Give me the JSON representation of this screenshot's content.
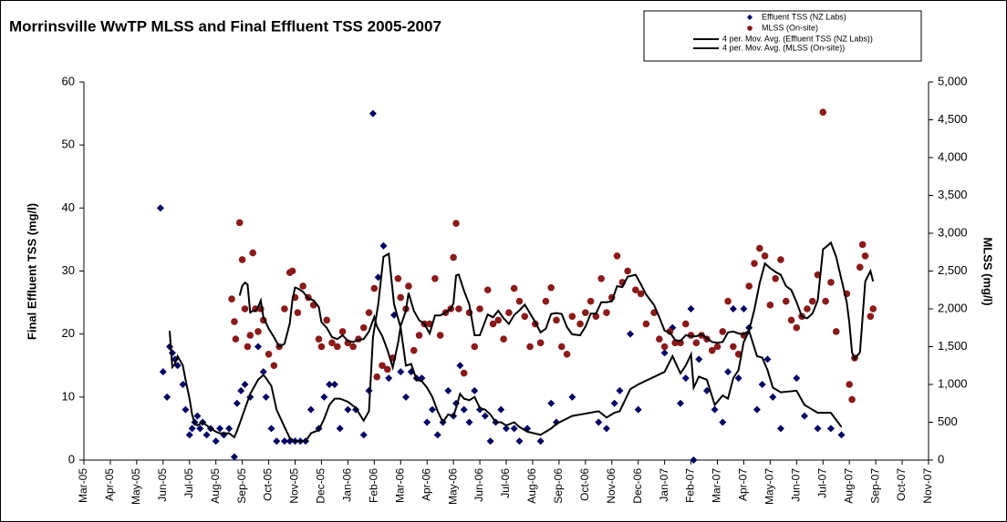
{
  "chart_data": {
    "type": "scatter",
    "title": "Morrinsville WwTP MLSS and Final Effluent TSS 2005-2007",
    "y_label": "Final Effluent TSS (mg/l)",
    "y2_label": "MLSS (mg/l)",
    "xlim": [
      0,
      32
    ],
    "xticks": [
      {
        "value": 0,
        "label": "Mar-05"
      },
      {
        "value": 1,
        "label": "Apr-05"
      },
      {
        "value": 2,
        "label": "May-05"
      },
      {
        "value": 3,
        "label": "Jun-05"
      },
      {
        "value": 4,
        "label": "Jul-05"
      },
      {
        "value": 5,
        "label": "Aug-05"
      },
      {
        "value": 6,
        "label": "Sep-05"
      },
      {
        "value": 7,
        "label": "Oct-05"
      },
      {
        "value": 8,
        "label": "Nov-05"
      },
      {
        "value": 9,
        "label": "Dec-05"
      },
      {
        "value": 10,
        "label": "Jan-06"
      },
      {
        "value": 11,
        "label": "Feb-06"
      },
      {
        "value": 12,
        "label": "Mar-06"
      },
      {
        "value": 13,
        "label": "Apr-06"
      },
      {
        "value": 14,
        "label": "May-06"
      },
      {
        "value": 15,
        "label": "Jun-06"
      },
      {
        "value": 16,
        "label": "Jul-06"
      },
      {
        "value": 17,
        "label": "Aug-06"
      },
      {
        "value": 18,
        "label": "Sep-06"
      },
      {
        "value": 19,
        "label": "Oct-06"
      },
      {
        "value": 20,
        "label": "Nov-06"
      },
      {
        "value": 21,
        "label": "Dec-06"
      },
      {
        "value": 22,
        "label": "Jan-07"
      },
      {
        "value": 23,
        "label": "Feb-07"
      },
      {
        "value": 24,
        "label": "Mar-07"
      },
      {
        "value": 25,
        "label": "Apr-07"
      },
      {
        "value": 26,
        "label": "May-07"
      },
      {
        "value": 27,
        "label": "Jun-07"
      },
      {
        "value": 28,
        "label": "Jul-07"
      },
      {
        "value": 29,
        "label": "Aug-07"
      },
      {
        "value": 30,
        "label": "Sep-07"
      },
      {
        "value": 31,
        "label": "Oct-07"
      },
      {
        "value": 32,
        "label": "Nov-07"
      }
    ],
    "ylim": [
      0,
      60
    ],
    "yticks": [
      0,
      10,
      20,
      30,
      40,
      50,
      60
    ],
    "y2lim": [
      0,
      5000
    ],
    "y2ticks": [
      0,
      500,
      {
        "value": 1000,
        "label": "1,000"
      },
      {
        "value": 1500,
        "label": "1,500"
      },
      {
        "value": 2000,
        "label": "2,000"
      },
      {
        "value": 2500,
        "label": "2,500"
      },
      {
        "value": 3000,
        "label": "3,000"
      },
      {
        "value": 3500,
        "label": "3,500"
      },
      {
        "value": 4000,
        "label": "4,000"
      },
      {
        "value": 4500,
        "label": "4,500"
      },
      {
        "value": 5000,
        "label": "5,000"
      }
    ],
    "grid": false,
    "series": [
      {
        "name": "Effluent TSS (NZ Labs)",
        "color": "#000066",
        "marker": "diamond",
        "axis": "y",
        "x": [
          2.9,
          3.0,
          3.15,
          3.25,
          3.35,
          3.45,
          3.55,
          3.75,
          3.85,
          4.0,
          4.1,
          4.2,
          4.3,
          4.4,
          4.5,
          4.65,
          4.8,
          5.0,
          5.15,
          5.3,
          5.5,
          5.7,
          5.8,
          5.95,
          6.1,
          6.3,
          6.6,
          6.8,
          6.9,
          7.1,
          7.3,
          7.6,
          7.8,
          8.0,
          8.2,
          8.4,
          8.6,
          8.9,
          9.1,
          9.3,
          9.5,
          9.7,
          10.0,
          10.3,
          10.6,
          10.8,
          10.95,
          11.15,
          11.35,
          11.55,
          11.75,
          12.0,
          12.2,
          12.4,
          12.6,
          12.8,
          13.0,
          13.2,
          13.4,
          13.6,
          13.8,
          14.0,
          14.1,
          14.25,
          14.4,
          14.6,
          14.8,
          15.0,
          15.2,
          15.4,
          15.6,
          15.8,
          16.0,
          16.3,
          16.5,
          16.8,
          17.3,
          17.7,
          17.9,
          18.5,
          19.5,
          19.8,
          20.1,
          20.3,
          20.7,
          21.0,
          22.0,
          22.3,
          22.6,
          22.8,
          23.0,
          23.1,
          23.3,
          23.6,
          23.9,
          24.2,
          24.4,
          24.6,
          24.8,
          25.0,
          25.2,
          25.5,
          25.7,
          25.9,
          26.1,
          26.4,
          27.0,
          27.3,
          27.8,
          28.3,
          28.7
        ],
        "values": [
          40,
          14,
          10,
          18,
          17,
          16,
          15,
          12,
          8,
          4,
          5,
          6,
          7,
          5,
          6,
          4,
          5,
          3,
          5,
          4,
          5,
          0.5,
          9,
          11,
          12,
          10,
          18,
          14,
          10,
          5,
          3,
          3,
          3,
          3,
          3,
          3,
          8,
          5,
          10,
          12,
          12,
          5,
          8,
          8,
          4,
          11,
          55,
          29,
          34,
          13,
          23,
          14,
          10,
          14,
          13,
          13,
          6,
          8,
          4,
          6,
          11,
          7,
          9,
          15,
          8,
          6,
          11,
          8,
          7,
          3,
          6,
          8,
          5,
          5,
          3,
          5,
          3,
          9,
          6,
          10,
          6,
          5,
          9,
          11,
          20,
          8,
          17,
          21,
          9,
          13,
          24,
          0,
          16,
          11,
          8,
          6,
          14,
          24,
          13,
          24,
          21,
          8,
          12,
          16,
          10,
          5,
          13,
          7,
          5,
          5,
          4
        ],
        "trendline": {
          "name": "4 per. Mov. Avg. (Effluent TSS (NZ Labs))",
          "period": 4,
          "color": "#000000"
        }
      },
      {
        "name": "MLSS (On-site)",
        "color": "#8b1a1a",
        "marker": "circle",
        "axis": "y2",
        "x": [
          5.6,
          5.7,
          5.75,
          5.9,
          6.0,
          6.1,
          6.2,
          6.3,
          6.4,
          6.5,
          6.6,
          6.7,
          6.8,
          7.0,
          7.2,
          7.4,
          7.6,
          7.8,
          7.9,
          8.0,
          8.1,
          8.3,
          8.5,
          8.7,
          8.9,
          9.0,
          9.2,
          9.4,
          9.6,
          9.8,
          10.0,
          10.2,
          10.4,
          10.6,
          10.8,
          11.0,
          11.1,
          11.3,
          11.5,
          11.7,
          11.9,
          12.0,
          12.2,
          12.3,
          12.5,
          12.7,
          12.9,
          13.1,
          13.3,
          13.5,
          13.7,
          13.9,
          14.0,
          14.1,
          14.2,
          14.4,
          14.6,
          14.8,
          15.0,
          15.3,
          15.5,
          15.7,
          15.9,
          16.1,
          16.3,
          16.5,
          16.7,
          16.9,
          17.1,
          17.3,
          17.5,
          17.7,
          17.9,
          18.1,
          18.3,
          18.5,
          18.8,
          19.0,
          19.2,
          19.4,
          19.6,
          19.8,
          20.0,
          20.2,
          20.4,
          20.6,
          20.9,
          21.1,
          21.3,
          21.6,
          21.8,
          22.0,
          22.2,
          22.4,
          22.6,
          22.8,
          23.0,
          23.2,
          23.4,
          23.6,
          23.8,
          24.0,
          24.2,
          24.4,
          24.6,
          24.8,
          25.0,
          25.2,
          25.4,
          25.6,
          25.8,
          26.0,
          26.2,
          26.4,
          26.6,
          26.8,
          27.0,
          27.2,
          27.4,
          27.6,
          27.8,
          28.0,
          28.1,
          28.3,
          28.5,
          28.9,
          29.0,
          29.1,
          29.2,
          29.4,
          29.5,
          29.6,
          29.8,
          29.9
        ],
        "values": [
          2130,
          1830,
          1600,
          3140,
          2650,
          2000,
          1500,
          1650,
          2740,
          2000,
          1700,
          2000,
          1850,
          1400,
          1250,
          1500,
          2000,
          2480,
          2500,
          2150,
          1950,
          2300,
          2150,
          2050,
          1600,
          1500,
          1850,
          1550,
          1500,
          1700,
          1550,
          1500,
          1600,
          1750,
          1950,
          2270,
          1100,
          1250,
          1200,
          1350,
          2400,
          2150,
          2000,
          2300,
          1450,
          1650,
          1800,
          1800,
          2400,
          1650,
          1950,
          2000,
          2680,
          3130,
          2000,
          1150,
          1950,
          1500,
          2000,
          2250,
          1800,
          1850,
          1600,
          1950,
          2270,
          2100,
          1900,
          1500,
          1800,
          1550,
          2100,
          2280,
          1850,
          1500,
          1400,
          1900,
          1800,
          1950,
          2100,
          1900,
          2400,
          1950,
          2150,
          2700,
          2350,
          2500,
          2250,
          2200,
          1800,
          1950,
          1600,
          1500,
          1700,
          1550,
          1550,
          1800,
          1650,
          1550,
          1650,
          1600,
          1450,
          1500,
          1700,
          2100,
          1500,
          1400,
          1650,
          2300,
          2600,
          2800,
          2700,
          2050,
          2400,
          2650,
          2100,
          1850,
          1750,
          1900,
          2000,
          2100,
          2450,
          4600,
          2100,
          2350,
          1700,
          2200,
          1000,
          800,
          1350,
          2550,
          2850,
          2700,
          1900,
          2000
        ],
        "trendline": {
          "name": "4 per. Mov. Avg. (MLSS (On-site))",
          "period": 4,
          "color": "#000000"
        }
      }
    ]
  }
}
